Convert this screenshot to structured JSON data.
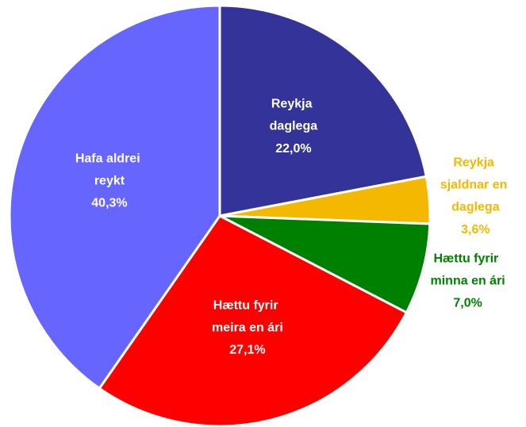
{
  "chart_data": {
    "type": "pie",
    "categories": [
      "Reykja daglega",
      "Reykja sjaldnar en daglega",
      "Hættu fyrir minna en ári",
      "Hættu fyrir meira en ári",
      "Hafa aldrei reykt"
    ],
    "values": [
      22.0,
      3.6,
      7.0,
      27.1,
      40.3
    ],
    "value_labels": [
      "22,0%",
      "3,6%",
      "7,0%",
      "27,1%",
      "40,3%"
    ],
    "colors": [
      "#333399",
      "#f5b800",
      "#008000",
      "#ff0000",
      "#6666ff"
    ]
  }
}
